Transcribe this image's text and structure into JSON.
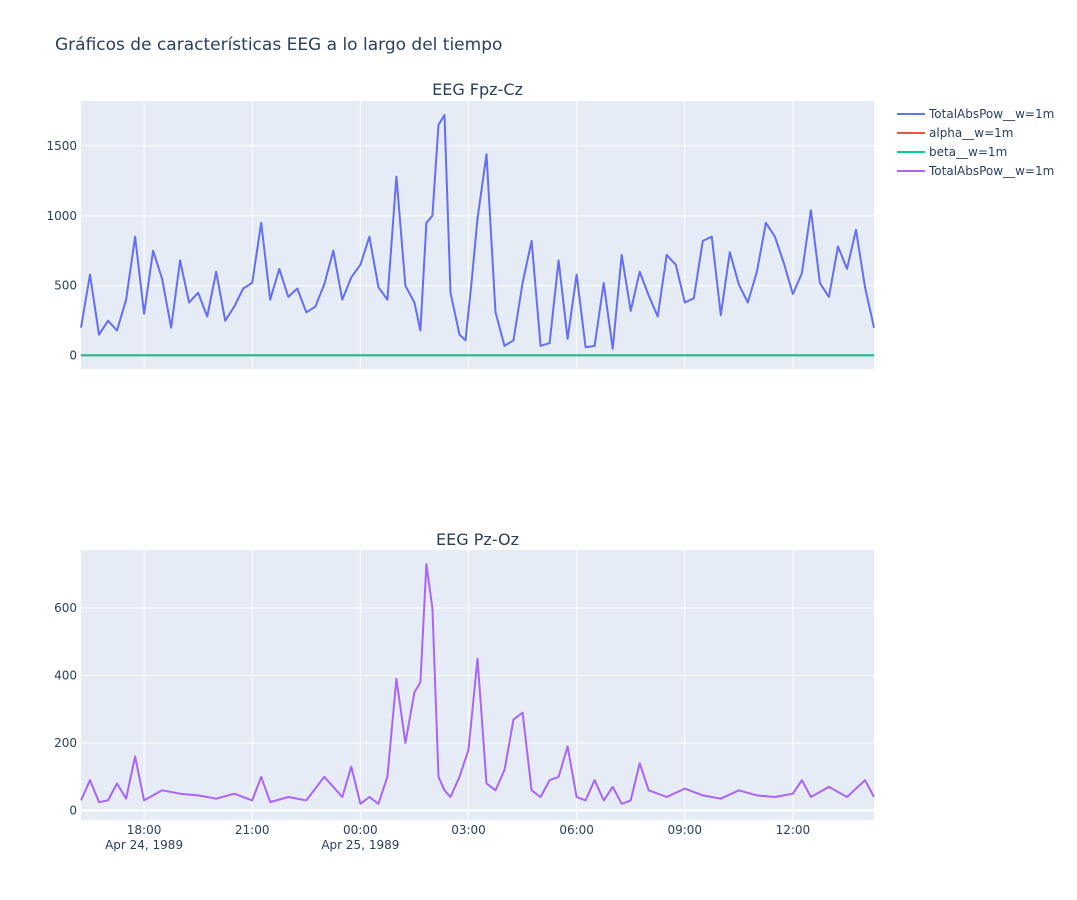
{
  "title": "Gráficos de características EEG a lo largo del tiempo",
  "legend": {
    "position": "top-right",
    "entries": [
      {
        "name": "TotalAbsPow__w=1m",
        "color": "#636efa"
      },
      {
        "name": "alpha__w=1m",
        "color": "#ef553b"
      },
      {
        "name": "beta__w=1m",
        "color": "#00cc96"
      },
      {
        "name": "TotalAbsPow__w=1m",
        "color": "#ab63fa"
      }
    ]
  },
  "x_axis": {
    "type": "date",
    "range": [
      "1989-04-24T16:15",
      "1989-04-25T14:15"
    ],
    "grid": true,
    "ticks": [
      {
        "t": "1989-04-24T18:00",
        "label": "18:00",
        "sublabel": "Apr 24, 1989"
      },
      {
        "t": "1989-04-24T21:00",
        "label": "21:00",
        "sublabel": ""
      },
      {
        "t": "1989-04-25T00:00",
        "label": "00:00",
        "sublabel": "Apr 25, 1989"
      },
      {
        "t": "1989-04-25T03:00",
        "label": "03:00",
        "sublabel": ""
      },
      {
        "t": "1989-04-25T06:00",
        "label": "06:00",
        "sublabel": ""
      },
      {
        "t": "1989-04-25T09:00",
        "label": "09:00",
        "sublabel": ""
      },
      {
        "t": "1989-04-25T12:00",
        "label": "12:00",
        "sublabel": ""
      }
    ]
  },
  "chart_data": [
    {
      "type": "line",
      "title": "EEG Fpz-Cz",
      "ylim": [
        -95,
        1820
      ],
      "yticks": [
        0,
        500,
        1000,
        1500
      ],
      "grid": true,
      "series": [
        {
          "name": "TotalAbsPow__w=1m",
          "color": "#636efa",
          "x": [
            "1989-04-24T16:15",
            "1989-04-24T16:30",
            "1989-04-24T16:45",
            "1989-04-24T17:00",
            "1989-04-24T17:15",
            "1989-04-24T17:30",
            "1989-04-24T17:45",
            "1989-04-24T18:00",
            "1989-04-24T18:15",
            "1989-04-24T18:30",
            "1989-04-24T18:45",
            "1989-04-24T19:00",
            "1989-04-24T19:15",
            "1989-04-24T19:30",
            "1989-04-24T19:45",
            "1989-04-24T20:00",
            "1989-04-24T20:15",
            "1989-04-24T20:30",
            "1989-04-24T20:45",
            "1989-04-24T21:00",
            "1989-04-24T21:15",
            "1989-04-24T21:30",
            "1989-04-24T21:45",
            "1989-04-24T22:00",
            "1989-04-24T22:15",
            "1989-04-24T22:30",
            "1989-04-24T22:45",
            "1989-04-24T23:00",
            "1989-04-24T23:15",
            "1989-04-24T23:30",
            "1989-04-24T23:45",
            "1989-04-25T00:00",
            "1989-04-25T00:15",
            "1989-04-25T00:30",
            "1989-04-25T00:45",
            "1989-04-25T01:00",
            "1989-04-25T01:15",
            "1989-04-25T01:30",
            "1989-04-25T01:40",
            "1989-04-25T01:50",
            "1989-04-25T02:00",
            "1989-04-25T02:10",
            "1989-04-25T02:20",
            "1989-04-25T02:30",
            "1989-04-25T02:45",
            "1989-04-25T02:55",
            "1989-04-25T03:05",
            "1989-04-25T03:15",
            "1989-04-25T03:30",
            "1989-04-25T03:45",
            "1989-04-25T04:00",
            "1989-04-25T04:15",
            "1989-04-25T04:30",
            "1989-04-25T04:45",
            "1989-04-25T05:00",
            "1989-04-25T05:15",
            "1989-04-25T05:30",
            "1989-04-25T05:45",
            "1989-04-25T06:00",
            "1989-04-25T06:15",
            "1989-04-25T06:30",
            "1989-04-25T06:45",
            "1989-04-25T07:00",
            "1989-04-25T07:15",
            "1989-04-25T07:30",
            "1989-04-25T07:45",
            "1989-04-25T08:00",
            "1989-04-25T08:15",
            "1989-04-25T08:30",
            "1989-04-25T08:45",
            "1989-04-25T09:00",
            "1989-04-25T09:15",
            "1989-04-25T09:30",
            "1989-04-25T09:45",
            "1989-04-25T10:00",
            "1989-04-25T10:15",
            "1989-04-25T10:30",
            "1989-04-25T10:45",
            "1989-04-25T11:00",
            "1989-04-25T11:15",
            "1989-04-25T11:30",
            "1989-04-25T11:45",
            "1989-04-25T12:00",
            "1989-04-25T12:15",
            "1989-04-25T12:30",
            "1989-04-25T12:45",
            "1989-04-25T13:00",
            "1989-04-25T13:15",
            "1989-04-25T13:30",
            "1989-04-25T13:45",
            "1989-04-25T14:00",
            "1989-04-25T14:15"
          ],
          "y": [
            200,
            580,
            150,
            250,
            180,
            400,
            850,
            300,
            750,
            550,
            200,
            680,
            380,
            450,
            280,
            600,
            250,
            350,
            480,
            520,
            950,
            400,
            620,
            420,
            480,
            310,
            350,
            510,
            750,
            400,
            560,
            650,
            850,
            490,
            400,
            1280,
            500,
            380,
            180,
            950,
            1000,
            1650,
            1720,
            450,
            150,
            110,
            520,
            980,
            1440,
            310,
            70,
            110,
            520,
            820,
            70,
            90,
            680,
            120,
            580,
            60,
            70,
            520,
            50,
            720,
            320,
            600,
            430,
            280,
            720,
            650,
            380,
            410,
            820,
            850,
            290,
            740,
            510,
            380,
            600,
            950,
            850,
            660,
            440,
            590,
            1040,
            520,
            420,
            780,
            620,
            900,
            490,
            200
          ]
        },
        {
          "name": "alpha__w=1m",
          "color": "#ef553b",
          "x": [
            "1989-04-24T16:15",
            "1989-04-25T14:15"
          ],
          "y": [
            3,
            3
          ]
        },
        {
          "name": "beta__w=1m",
          "color": "#00cc96",
          "x": [
            "1989-04-24T16:15",
            "1989-04-25T14:15"
          ],
          "y": [
            2,
            2
          ]
        }
      ]
    },
    {
      "type": "line",
      "title": "EEG Pz-Oz",
      "ylim": [
        -28,
        772
      ],
      "yticks": [
        0,
        200,
        400,
        600
      ],
      "grid": true,
      "series": [
        {
          "name": "TotalAbsPow__w=1m",
          "color": "#ab63fa",
          "x": [
            "1989-04-24T16:15",
            "1989-04-24T16:30",
            "1989-04-24T16:45",
            "1989-04-24T17:00",
            "1989-04-24T17:15",
            "1989-04-24T17:30",
            "1989-04-24T17:45",
            "1989-04-24T18:00",
            "1989-04-24T18:30",
            "1989-04-24T19:00",
            "1989-04-24T19:30",
            "1989-04-24T20:00",
            "1989-04-24T20:30",
            "1989-04-24T21:00",
            "1989-04-24T21:15",
            "1989-04-24T21:30",
            "1989-04-24T22:00",
            "1989-04-24T22:30",
            "1989-04-24T23:00",
            "1989-04-24T23:30",
            "1989-04-24T23:45",
            "1989-04-25T00:00",
            "1989-04-25T00:15",
            "1989-04-25T00:30",
            "1989-04-25T00:45",
            "1989-04-25T01:00",
            "1989-04-25T01:15",
            "1989-04-25T01:30",
            "1989-04-25T01:40",
            "1989-04-25T01:50",
            "1989-04-25T02:00",
            "1989-04-25T02:10",
            "1989-04-25T02:20",
            "1989-04-25T02:30",
            "1989-04-25T02:45",
            "1989-04-25T03:00",
            "1989-04-25T03:15",
            "1989-04-25T03:30",
            "1989-04-25T03:45",
            "1989-04-25T04:00",
            "1989-04-25T04:15",
            "1989-04-25T04:30",
            "1989-04-25T04:45",
            "1989-04-25T05:00",
            "1989-04-25T05:15",
            "1989-04-25T05:30",
            "1989-04-25T05:45",
            "1989-04-25T06:00",
            "1989-04-25T06:15",
            "1989-04-25T06:30",
            "1989-04-25T06:45",
            "1989-04-25T07:00",
            "1989-04-25T07:15",
            "1989-04-25T07:30",
            "1989-04-25T07:45",
            "1989-04-25T08:00",
            "1989-04-25T08:30",
            "1989-04-25T09:00",
            "1989-04-25T09:30",
            "1989-04-25T10:00",
            "1989-04-25T10:30",
            "1989-04-25T11:00",
            "1989-04-25T11:30",
            "1989-04-25T12:00",
            "1989-04-25T12:15",
            "1989-04-25T12:30",
            "1989-04-25T13:00",
            "1989-04-25T13:30",
            "1989-04-25T14:00",
            "1989-04-25T14:15"
          ],
          "y": [
            30,
            90,
            25,
            30,
            80,
            35,
            160,
            30,
            60,
            50,
            45,
            35,
            50,
            30,
            100,
            25,
            40,
            30,
            100,
            40,
            130,
            20,
            40,
            20,
            100,
            390,
            200,
            350,
            380,
            730,
            600,
            100,
            60,
            40,
            100,
            180,
            450,
            80,
            60,
            120,
            270,
            290,
            60,
            40,
            90,
            100,
            190,
            40,
            30,
            90,
            30,
            70,
            20,
            30,
            140,
            60,
            40,
            65,
            45,
            35,
            60,
            45,
            40,
            50,
            90,
            40,
            70,
            40,
            90,
            40
          ]
        }
      ]
    }
  ]
}
